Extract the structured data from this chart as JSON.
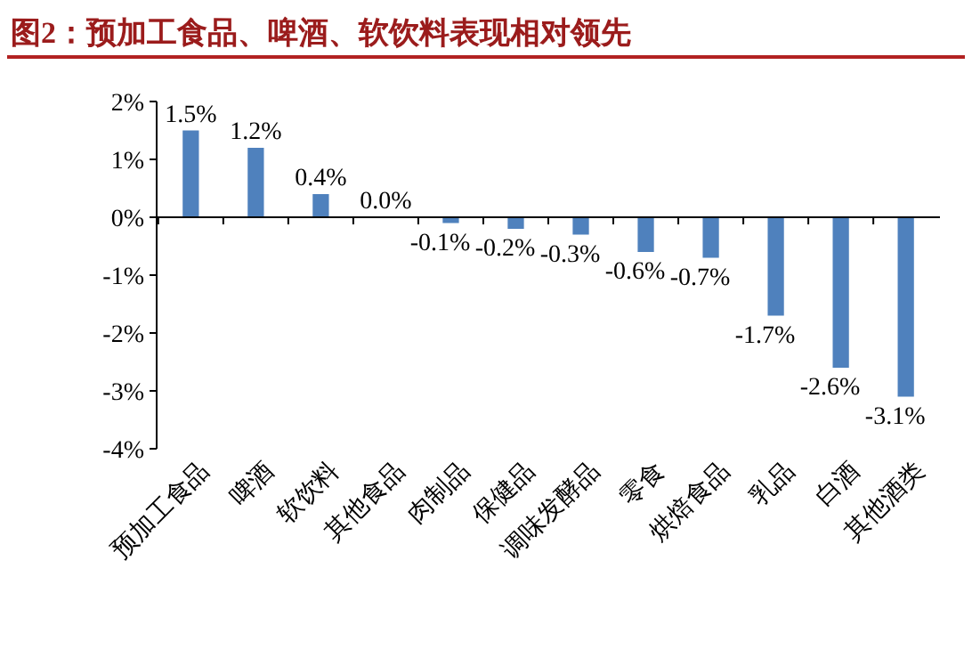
{
  "chart_data": {
    "type": "bar",
    "title": "图2：预加工食品、啤酒、软饮料表现相对领先",
    "categories": [
      "预加工食品",
      "啤酒",
      "软饮料",
      "其他食品",
      "肉制品",
      "保健品",
      "调味发酵品",
      "零食",
      "烘焙食品",
      "乳品",
      "白酒",
      "其他酒类"
    ],
    "values": [
      1.5,
      1.2,
      0.4,
      0.0,
      -0.1,
      -0.2,
      -0.3,
      -0.6,
      -0.7,
      -1.7,
      -2.6,
      -3.1
    ],
    "value_labels": [
      "1.5%",
      "1.2%",
      "0.4%",
      "0.0%",
      "-0.1%",
      "-0.2%",
      "-0.3%",
      "-0.6%",
      "-0.7%",
      "-1.7%",
      "-2.6%",
      "-3.1%"
    ],
    "color": "#4f81bd",
    "ylim": [
      -4,
      2
    ],
    "yticks": [
      {
        "value": -4,
        "label": "-4%"
      },
      {
        "value": -3,
        "label": "-3%"
      },
      {
        "value": -2,
        "label": "-2%"
      },
      {
        "value": -1,
        "label": "-1%"
      },
      {
        "value": 0,
        "label": "0%"
      },
      {
        "value": 1,
        "label": "1%"
      },
      {
        "value": 2,
        "label": "2%"
      }
    ],
    "ylabel": null
  }
}
